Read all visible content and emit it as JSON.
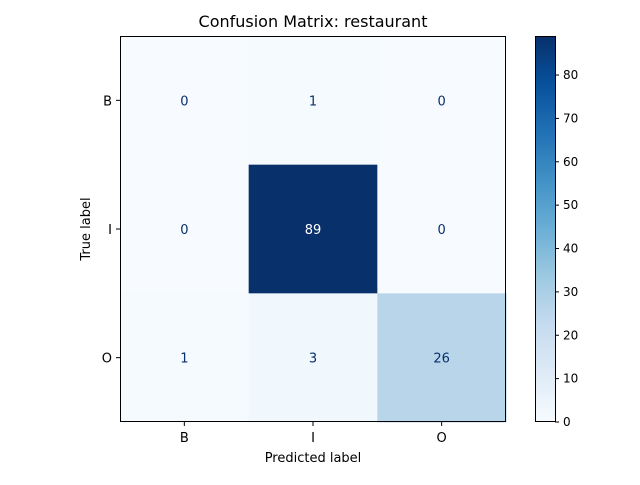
{
  "chart_data": {
    "type": "heatmap",
    "title": "Confusion Matrix: restaurant",
    "xlabel": "Predicted label",
    "ylabel": "True label",
    "x_categories": [
      "B",
      "I",
      "O"
    ],
    "y_categories": [
      "B",
      "I",
      "O"
    ],
    "values": [
      [
        0,
        1,
        0
      ],
      [
        0,
        89,
        0
      ],
      [
        1,
        3,
        26
      ]
    ],
    "colormap": "Blues",
    "colorbar": {
      "vmin": 0,
      "vmax": 89,
      "ticks": [
        0,
        10,
        20,
        30,
        40,
        50,
        60,
        70,
        80
      ]
    },
    "grid": false,
    "text_colors": {
      "dark_text": "#08306b",
      "light_text": "#ffffff"
    }
  }
}
